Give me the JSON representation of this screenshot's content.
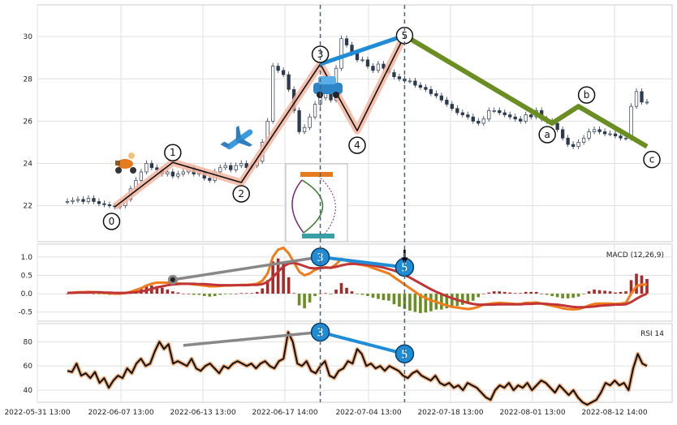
{
  "chart_data": {
    "type": "line",
    "x_tick_labels": [
      "2022-05-31 13:00",
      "2022-06-07 13:00",
      "2022-06-13 13:00",
      "2022-06-17 14:00",
      "2022-07-04 13:00",
      "2022-07-18 13:00",
      "2022-08-01 13:00",
      "2022-08-12 14:00"
    ],
    "price_panel": {
      "ylim": [
        20.3,
        31.5
      ],
      "yticks": [
        22,
        24,
        26,
        28,
        30
      ],
      "grid": true,
      "candles_close": [
        22.2,
        22.25,
        22.3,
        22.2,
        22.35,
        22.2,
        22.1,
        22.05,
        22.0,
        21.95,
        22.0,
        22.3,
        22.8,
        23.2,
        23.6,
        24.0,
        23.8,
        23.7,
        23.5,
        23.6,
        23.4,
        23.5,
        23.6,
        23.8,
        23.5,
        23.6,
        23.3,
        23.2,
        23.6,
        23.8,
        23.9,
        23.7,
        23.9,
        24.0,
        23.8,
        23.9,
        24.1,
        25.0,
        26.0,
        28.6,
        28.4,
        28.2,
        27.5,
        26.5,
        25.5,
        25.7,
        26.2,
        26.8,
        27.1,
        27.3,
        27.0,
        28.5,
        29.9,
        29.6,
        29.2,
        28.9,
        28.9,
        28.6,
        28.4,
        28.7,
        28.5,
        28.3,
        28.1,
        28.0,
        27.9,
        27.9,
        27.7,
        27.6,
        27.5,
        27.3,
        27.2,
        27.0,
        26.8,
        26.6,
        26.4,
        26.3,
        26.2,
        26.0,
        25.9,
        26.1,
        26.5,
        26.5,
        26.4,
        26.3,
        26.2,
        26.1,
        26.0,
        26.3,
        26.2,
        26.5,
        26.1,
        26.0,
        25.9,
        25.6,
        25.2,
        24.9,
        24.8,
        25.0,
        25.2,
        25.5,
        25.6,
        25.5,
        25.4,
        25.4,
        25.3,
        25.2,
        25.2,
        26.7,
        27.4,
        26.9,
        26.9
      ],
      "waves": [
        {
          "label": "0",
          "index": 9,
          "price": 21.95
        },
        {
          "label": "1",
          "index": 20,
          "price": 24.05
        },
        {
          "label": "2",
          "index": 33,
          "price": 23.1
        },
        {
          "label": "3",
          "index": 48,
          "price": 28.7
        },
        {
          "label": "4",
          "index": 55,
          "price": 25.55
        },
        {
          "label": "5",
          "index": 64,
          "price": 30.05
        }
      ],
      "corrective_waves": [
        {
          "label": "a",
          "index": 92,
          "price": 25.9
        },
        {
          "label": "b",
          "index": 97,
          "price": 26.7
        },
        {
          "label": "c",
          "index": 110,
          "price": 24.8
        }
      ],
      "icons": [
        "scooter-icon",
        "airplane-icon",
        "car-icon"
      ]
    },
    "macd_panel": {
      "title": "MACD (12,26,9)",
      "ylim": [
        -0.75,
        1.35
      ],
      "yticks": [
        -0.5,
        0.0,
        0.5,
        1.0
      ],
      "macd": [
        0.02,
        0.03,
        0.04,
        0.04,
        0.05,
        0.04,
        0.03,
        0.02,
        0.01,
        0.0,
        0.0,
        0.02,
        0.05,
        0.1,
        0.15,
        0.22,
        0.27,
        0.3,
        0.3,
        0.3,
        0.29,
        0.28,
        0.27,
        0.27,
        0.25,
        0.24,
        0.22,
        0.2,
        0.2,
        0.21,
        0.22,
        0.22,
        0.23,
        0.24,
        0.24,
        0.25,
        0.27,
        0.35,
        0.55,
        1.0,
        1.2,
        1.25,
        1.1,
        0.85,
        0.6,
        0.5,
        0.55,
        0.65,
        0.7,
        0.72,
        0.7,
        0.8,
        0.95,
        0.9,
        0.85,
        0.8,
        0.78,
        0.75,
        0.7,
        0.65,
        0.6,
        0.55,
        0.45,
        0.35,
        0.25,
        0.15,
        0.05,
        -0.05,
        -0.12,
        -0.18,
        -0.22,
        -0.28,
        -0.32,
        -0.36,
        -0.38,
        -0.4,
        -0.42,
        -0.4,
        -0.36,
        -0.3,
        -0.28,
        -0.26,
        -0.25,
        -0.26,
        -0.27,
        -0.28,
        -0.28,
        -0.25,
        -0.25,
        -0.24,
        -0.27,
        -0.3,
        -0.33,
        -0.36,
        -0.4,
        -0.42,
        -0.43,
        -0.42,
        -0.38,
        -0.32,
        -0.28,
        -0.27,
        -0.27,
        -0.27,
        -0.28,
        -0.27,
        -0.25,
        0.0,
        0.2,
        0.25,
        0.25
      ],
      "signal": [
        0.02,
        0.02,
        0.03,
        0.03,
        0.03,
        0.04,
        0.04,
        0.03,
        0.03,
        0.02,
        0.02,
        0.02,
        0.03,
        0.04,
        0.06,
        0.09,
        0.13,
        0.17,
        0.2,
        0.23,
        0.25,
        0.26,
        0.27,
        0.27,
        0.27,
        0.26,
        0.26,
        0.25,
        0.24,
        0.23,
        0.23,
        0.23,
        0.23,
        0.23,
        0.23,
        0.24,
        0.24,
        0.26,
        0.32,
        0.45,
        0.6,
        0.74,
        0.82,
        0.84,
        0.8,
        0.75,
        0.7,
        0.69,
        0.7,
        0.71,
        0.71,
        0.73,
        0.77,
        0.8,
        0.81,
        0.81,
        0.8,
        0.79,
        0.77,
        0.74,
        0.71,
        0.67,
        0.63,
        0.57,
        0.51,
        0.44,
        0.36,
        0.28,
        0.2,
        0.12,
        0.05,
        -0.01,
        -0.07,
        -0.12,
        -0.17,
        -0.21,
        -0.25,
        -0.28,
        -0.3,
        -0.3,
        -0.3,
        -0.3,
        -0.29,
        -0.29,
        -0.29,
        -0.29,
        -0.29,
        -0.28,
        -0.28,
        -0.27,
        -0.27,
        -0.28,
        -0.29,
        -0.3,
        -0.32,
        -0.34,
        -0.36,
        -0.37,
        -0.37,
        -0.36,
        -0.35,
        -0.33,
        -0.32,
        -0.31,
        -0.3,
        -0.3,
        -0.29,
        -0.23,
        -0.14,
        -0.06,
        -0.0
      ],
      "divergence_points": [
        {
          "label": "",
          "index": 20,
          "value": 0.38
        },
        {
          "label": "3",
          "index": 48,
          "value": 1.0
        },
        {
          "label": "5",
          "index": 64,
          "value": 0.72
        }
      ]
    },
    "rsi_panel": {
      "title": "RSI 14",
      "ylim": [
        30,
        95
      ],
      "yticks": [
        40,
        60,
        80
      ],
      "rsi": [
        56,
        55,
        62,
        52,
        54,
        50,
        55,
        46,
        50,
        42,
        48,
        52,
        50,
        58,
        54,
        62,
        66,
        60,
        62,
        72,
        80,
        74,
        78,
        62,
        64,
        62,
        60,
        66,
        58,
        56,
        60,
        62,
        58,
        54,
        60,
        58,
        62,
        64,
        62,
        60,
        62,
        58,
        62,
        64,
        60,
        58,
        64,
        66,
        88,
        80,
        62,
        60,
        64,
        56,
        54,
        60,
        64,
        52,
        50,
        56,
        58,
        64,
        62,
        74,
        70,
        60,
        62,
        58,
        60,
        56,
        60,
        58,
        56,
        52,
        50,
        54,
        56,
        52,
        50,
        48,
        52,
        46,
        44,
        46,
        42,
        44,
        40,
        46,
        44,
        42,
        38,
        34,
        32,
        40,
        44,
        42,
        46,
        40,
        44,
        42,
        46,
        40,
        44,
        48,
        46,
        42,
        38,
        44,
        40,
        36,
        40,
        34,
        30,
        28,
        30,
        32,
        38,
        46,
        44,
        48,
        44,
        46,
        40,
        58,
        70,
        62,
        60
      ],
      "divergence_points": [
        {
          "label": "",
          "index": 22,
          "value": 77
        },
        {
          "label": "3",
          "index": 48,
          "value": 88
        },
        {
          "label": "5",
          "index": 64,
          "value": 70
        }
      ]
    }
  }
}
